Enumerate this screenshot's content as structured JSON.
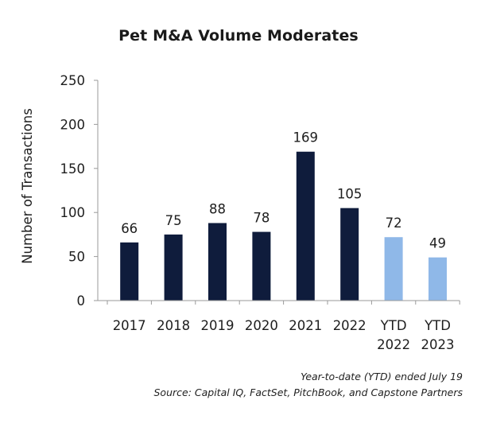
{
  "chart_data": {
    "type": "bar",
    "title": "Pet M&A Volume Moderates",
    "ylabel": "Number of Transactions",
    "xlabel": "",
    "ylim": [
      0,
      250
    ],
    "yticks": [
      0,
      50,
      100,
      150,
      200,
      250
    ],
    "grid": false,
    "categories": [
      [
        "2017"
      ],
      [
        "2018"
      ],
      [
        "2019"
      ],
      [
        "2020"
      ],
      [
        "2021"
      ],
      [
        "2022"
      ],
      [
        "YTD",
        "2022"
      ],
      [
        "YTD",
        "2023"
      ]
    ],
    "values": [
      66,
      75,
      88,
      78,
      169,
      105,
      72,
      49
    ],
    "bar_colors": [
      "#0f1c3c",
      "#0f1c3c",
      "#0f1c3c",
      "#0f1c3c",
      "#0f1c3c",
      "#0f1c3c",
      "#8fb8e8",
      "#8fb8e8"
    ]
  },
  "notes": {
    "ytd": "Year-to-date (YTD) ended July 19",
    "source": "Source: Capital IQ, FactSet, PitchBook, and Capstone Partners"
  }
}
